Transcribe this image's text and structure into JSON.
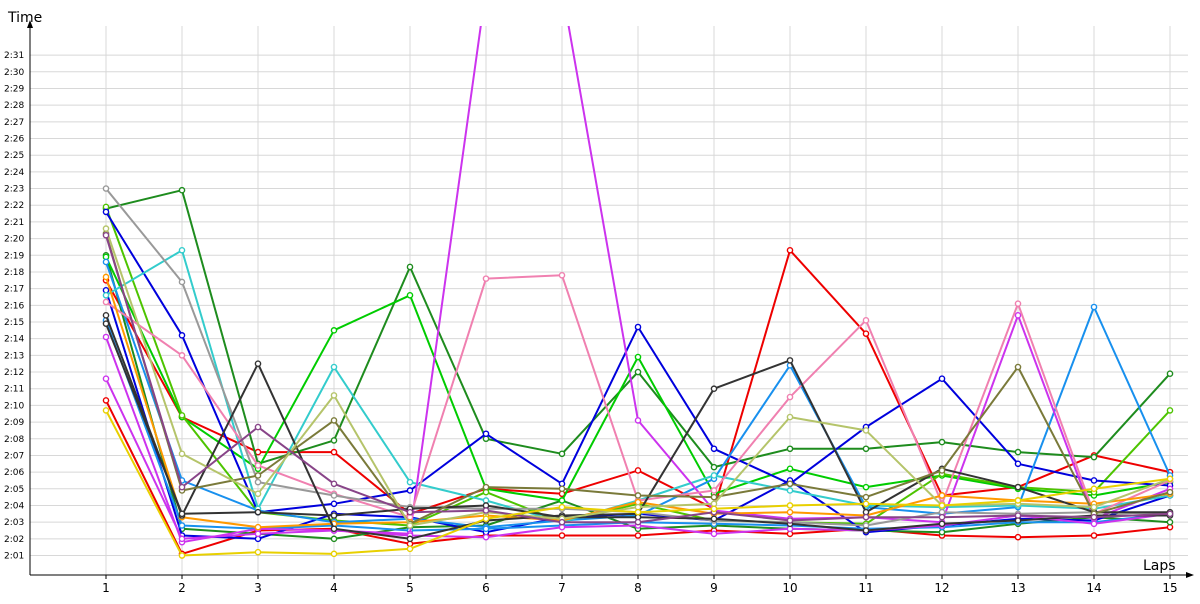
{
  "chart_data": {
    "type": "line",
    "ylabel": "Time",
    "xlabel": "Laps",
    "x": [
      1,
      2,
      3,
      4,
      5,
      6,
      7,
      8,
      9,
      10,
      11,
      12,
      13,
      14,
      15
    ],
    "y_ticks": [
      "2:01",
      "2:02",
      "2:03",
      "2:04",
      "2:05",
      "2:06",
      "2:07",
      "2:08",
      "2:09",
      "2:10",
      "2:11",
      "2:12",
      "2:13",
      "2:14",
      "2:15",
      "2:16",
      "2:17",
      "2:18",
      "2:19",
      "2:20",
      "2:21",
      "2:22",
      "2:23",
      "2:24",
      "2:25",
      "2:26",
      "2:27",
      "2:28",
      "2:29",
      "2:30",
      "2:31"
    ],
    "y_unit": "seconds after 2:00",
    "ylim": [
      0,
      32
    ],
    "grid": true,
    "series": [
      {
        "color": "#ee0000",
        "values": [
          17.5,
          9.3,
          7.2,
          7.2,
          3.5,
          5.0,
          4.7,
          6.1,
          3.8,
          19.3,
          14.3,
          4.6,
          5.1,
          7.0,
          6.0
        ]
      },
      {
        "color": "#ee0000",
        "values": [
          10.3,
          1.1,
          2.5,
          2.6,
          1.7,
          2.2,
          2.2,
          2.2,
          2.5,
          2.3,
          2.6,
          2.2,
          2.1,
          2.2,
          2.7
        ]
      },
      {
        "color": "#1e8c1e",
        "values": [
          21.8,
          22.9,
          6.5,
          7.9,
          18.3,
          8.0,
          7.1,
          12.0,
          6.3,
          7.4,
          7.4,
          7.8,
          7.2,
          6.9,
          11.9
        ]
      },
      {
        "color": "#1e8c1e",
        "values": [
          19.0,
          2.6,
          2.3,
          2.0,
          2.7,
          2.8,
          4.3,
          2.6,
          2.8,
          2.6,
          2.5,
          2.4,
          2.9,
          3.3,
          3.0
        ]
      },
      {
        "color": "#00cc00",
        "values": [
          18.9,
          9.3,
          6.2,
          14.5,
          16.6,
          5.0,
          4.3,
          12.9,
          4.7,
          6.2,
          5.1,
          5.8,
          5.0,
          4.6,
          5.4
        ]
      },
      {
        "color": "#4dc400",
        "values": [
          21.9,
          9.4,
          3.6,
          3.1,
          2.8,
          4.8,
          3.0,
          4.1,
          3.1,
          3.0,
          2.9,
          5.9,
          5.1,
          4.8,
          9.7
        ]
      },
      {
        "color": "#0000dd",
        "values": [
          21.6,
          14.2,
          3.6,
          4.1,
          4.9,
          8.3,
          5.3,
          14.7,
          7.4,
          5.3,
          8.7,
          11.6,
          6.5,
          5.5,
          5.2
        ]
      },
      {
        "color": "#0000dd",
        "values": [
          16.9,
          2.2,
          2.0,
          3.5,
          3.3,
          2.4,
          3.3,
          3.5,
          3.1,
          5.5,
          2.4,
          2.8,
          3.2,
          3.1,
          4.6
        ]
      },
      {
        "color": "#1890ee",
        "values": [
          18.6,
          5.5,
          3.7,
          3.0,
          3.2,
          2.7,
          3.1,
          3.4,
          5.6,
          12.4,
          3.9,
          3.5,
          3.9,
          15.9,
          5.8
        ]
      },
      {
        "color": "#1890ee",
        "values": [
          15.1,
          2.8,
          2.6,
          2.8,
          2.5,
          2.6,
          2.8,
          3.0,
          2.9,
          2.8,
          2.6,
          2.7,
          3.0,
          3.0,
          3.5
        ]
      },
      {
        "color": "#33cccc",
        "values": [
          16.6,
          19.3,
          3.8,
          12.3,
          5.4,
          4.3,
          3.0,
          4.3,
          5.8,
          4.9,
          4.0,
          3.9,
          4.0,
          3.8,
          4.6
        ]
      },
      {
        "color": "#cc33ee",
        "values": [
          14.1,
          1.8,
          2.6,
          2.5,
          2.3,
          35.0,
          35.0,
          9.1,
          3.7,
          3.2,
          3.3,
          3.0,
          15.4,
          3.2,
          5.0
        ]
      },
      {
        "color": "#cc33ee",
        "values": [
          11.6,
          2.0,
          2.3,
          2.5,
          2.2,
          2.1,
          2.7,
          2.8,
          2.3,
          2.6,
          2.5,
          2.8,
          3.4,
          2.9,
          3.5
        ]
      },
      {
        "color": "#f080b0",
        "values": [
          16.2,
          13.0,
          6.4,
          4.7,
          3.3,
          17.6,
          17.8,
          4.3,
          4.9,
          10.5,
          15.1,
          4.1,
          16.1,
          3.5,
          5.5
        ]
      },
      {
        "color": "#ff9900",
        "values": [
          17.7,
          3.3,
          2.7,
          2.9,
          3.0,
          3.4,
          3.1,
          4.2,
          3.5,
          3.6,
          3.4,
          4.6,
          4.3,
          4.1,
          4.7
        ]
      },
      {
        "color": "#999999",
        "values": [
          23.0,
          17.4,
          5.4,
          4.6,
          3.9,
          3.8,
          3.8,
          3.6,
          3.1,
          3.0,
          2.8,
          3.6,
          3.5,
          3.6,
          3.5
        ]
      },
      {
        "color": "#333333",
        "values": [
          15.4,
          3.4,
          12.5,
          2.6,
          2.0,
          3.1,
          3.4,
          3.5,
          11.0,
          12.7,
          3.6,
          6.2,
          5.1,
          3.6,
          3.6
        ]
      },
      {
        "color": "#333333",
        "values": [
          14.9,
          3.5,
          3.6,
          3.4,
          3.8,
          4.0,
          3.3,
          3.3,
          3.2,
          2.9,
          2.5,
          2.9,
          3.1,
          3.4,
          3.4
        ]
      },
      {
        "color": "#7a7a3a",
        "values": [
          20.3,
          4.9,
          5.8,
          9.1,
          2.9,
          5.1,
          5.0,
          4.6,
          4.5,
          5.3,
          4.5,
          6.1,
          12.3,
          3.5,
          4.8
        ]
      },
      {
        "color": "#b5c46a",
        "values": [
          20.6,
          7.1,
          4.7,
          10.6,
          2.8,
          3.6,
          3.2,
          3.9,
          4.1,
          9.3,
          8.5,
          4.0,
          4.1,
          3.9,
          5.6
        ]
      },
      {
        "color": "#884488",
        "values": [
          20.2,
          5.1,
          8.7,
          5.3,
          3.6,
          3.7,
          3.0,
          3.0,
          3.6,
          3.1,
          3.3,
          3.3,
          3.4,
          3.3,
          3.5
        ]
      },
      {
        "color": "#e8d000",
        "values": [
          9.7,
          1.0,
          1.2,
          1.1,
          1.4,
          3.2,
          3.9,
          3.6,
          3.8,
          4.0,
          4.1,
          4.0,
          4.3,
          5.0,
          5.6
        ]
      }
    ]
  }
}
